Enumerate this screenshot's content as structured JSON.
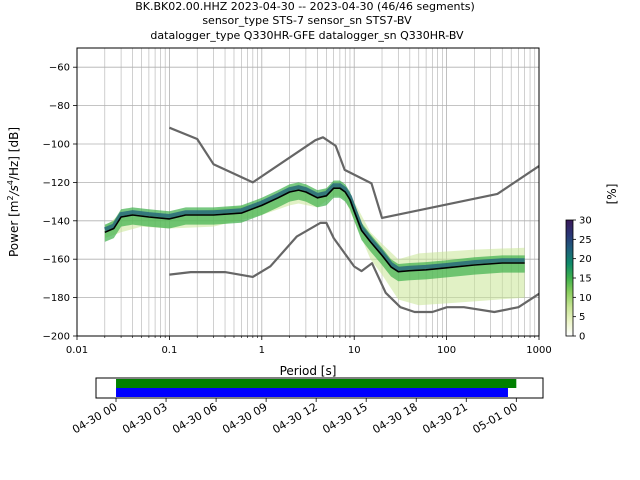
{
  "title_lines": [
    "BK.BK02.00.HHZ   2023-04-30 -- 2023-04-30  (46/46 segments)",
    "sensor_type STS-7 sensor_sn STS7-BV",
    "datalogger_type Q330HR-GFE datalogger_sn Q330HR-BV"
  ],
  "chart_data": {
    "type": "heatmap",
    "xlabel": "Period [s]",
    "ylabel_parts": [
      "Power [m",
      "2",
      "/s",
      "4",
      "/Hz] [dB]"
    ],
    "xscale": "log",
    "xlim": [
      0.01,
      1000
    ],
    "ylim": [
      -200,
      -50
    ],
    "xticks": [
      0.01,
      0.1,
      1,
      10,
      100,
      1000
    ],
    "xtick_labels": [
      "0.01",
      "0.1",
      "1",
      "10",
      "100",
      "1000"
    ],
    "yticks": [
      -200,
      -180,
      -160,
      -140,
      -120,
      -100,
      -80,
      -60
    ],
    "ytick_labels": [
      "−200",
      "−180",
      "−160",
      "−140",
      "−120",
      "−100",
      "−80",
      "−60"
    ],
    "grid": true,
    "colorbar": {
      "label": "[%]",
      "range": [
        0,
        30
      ],
      "ticks": [
        0,
        5,
        10,
        15,
        20,
        25,
        30
      ],
      "colors": [
        "#ffffff",
        "#ecf5c8",
        "#c8e596",
        "#8ccf5f",
        "#3fb04c",
        "#0f8a6a",
        "#1f5f7c",
        "#2a3575",
        "#3a1a5a"
      ]
    },
    "series": [
      {
        "role": "noise-model-upper",
        "color": "#666666",
        "x": [
          0.1,
          0.2,
          0.3,
          0.8,
          3.8,
          4.6,
          6.3,
          7.9,
          15.4,
          20,
          354.8,
          1000
        ],
        "y": [
          -91.5,
          -97.4,
          -110.5,
          -120,
          -98,
          -96.5,
          -101,
          -113.5,
          -120.5,
          -138.5,
          -126,
          -111.5
        ]
      },
      {
        "role": "noise-model-lower",
        "color": "#666666",
        "x": [
          0.1,
          0.17,
          0.4,
          0.8,
          1.24,
          2.4,
          4.3,
          5,
          6,
          10,
          12,
          15.6,
          21.9,
          31.6,
          45,
          70,
          101,
          154,
          328,
          600,
          1000
        ],
        "y": [
          -168,
          -166.7,
          -166.7,
          -169.2,
          -163.7,
          -148.1,
          -141.1,
          -141.1,
          -149,
          -163.8,
          -166.2,
          -162.1,
          -177.5,
          -185,
          -187.5,
          -187.5,
          -185,
          -185,
          -187.5,
          -185,
          -178
        ]
      },
      {
        "role": "mode",
        "color": "#000000",
        "x": [
          0.02,
          0.025,
          0.03,
          0.04,
          0.06,
          0.1,
          0.15,
          0.3,
          0.6,
          1,
          1.5,
          2,
          2.5,
          3,
          4,
          5,
          6,
          7,
          8,
          9,
          10,
          12,
          15,
          20,
          25,
          30,
          40,
          60,
          100,
          200,
          400,
          700
        ],
        "y": [
          -146,
          -144,
          -138,
          -137,
          -138,
          -139,
          -137,
          -137,
          -136,
          -132,
          -128,
          -125,
          -124,
          -125,
          -128,
          -127,
          -123,
          -123,
          -125,
          -129,
          -135,
          -145,
          -151,
          -158,
          -164,
          -166.5,
          -166,
          -165.5,
          -164.5,
          -163,
          -162,
          -162
        ]
      },
      {
        "role": "pdf-upper",
        "color": "#3fb04c",
        "x": [
          0.02,
          0.03,
          0.05,
          0.1,
          0.3,
          1,
          2,
          2.5,
          4,
          6,
          7,
          8,
          10,
          15,
          20,
          30,
          50,
          100,
          200,
          700
        ],
        "y": [
          -143,
          -136,
          -136,
          -137,
          -134,
          -131,
          -123,
          -121,
          -126,
          -121,
          -122,
          -123,
          -130,
          -146,
          -152,
          -160,
          -157,
          -156,
          -155,
          -154
        ]
      },
      {
        "role": "pdf-lower",
        "color": "#c8e596",
        "x": [
          0.02,
          0.03,
          0.05,
          0.1,
          0.3,
          1,
          2,
          2.5,
          4,
          6,
          7,
          8,
          10,
          15,
          20,
          30,
          50,
          100,
          200,
          700
        ],
        "y": [
          -149,
          -146,
          -143,
          -144,
          -143,
          -137,
          -132,
          -131,
          -133,
          -127,
          -127,
          -129,
          -140,
          -160,
          -168,
          -181,
          -184,
          -183,
          -182,
          -180
        ]
      }
    ]
  },
  "time_axis": {
    "tick_labels": [
      "04-30 00",
      "04-30 03",
      "04-30 06",
      "04-30 09",
      "04-30 12",
      "04-30 15",
      "04-30 18",
      "04-30 21",
      "05-01 00"
    ],
    "range_hours": [
      -1.2,
      25.6
    ],
    "bars": [
      {
        "role": "data-coverage",
        "color": "#008000",
        "start_hour": 0,
        "end_hour": 24
      },
      {
        "role": "psd-segments",
        "color": "#0000ff",
        "start_hour": 0,
        "end_hour": 23.5
      }
    ]
  }
}
